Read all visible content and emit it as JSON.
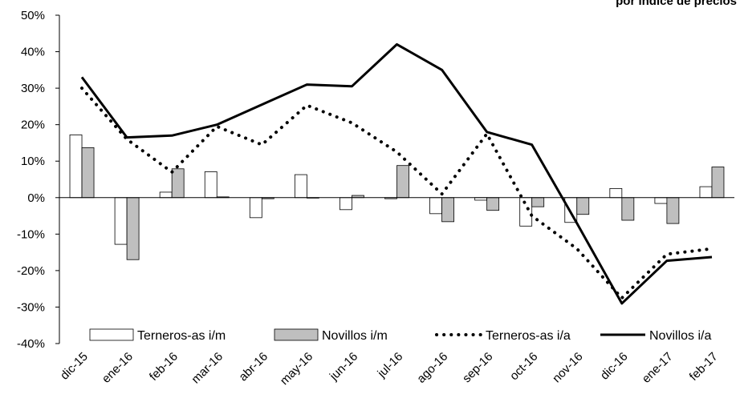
{
  "chart_data": {
    "type": "bar",
    "title": "por índice de precios",
    "xlabel": "",
    "ylabel": "",
    "ylim": [
      -0.4,
      0.5
    ],
    "yticks": [
      -0.4,
      -0.3,
      -0.2,
      -0.1,
      0,
      0.1,
      0.2,
      0.3,
      0.4,
      0.5
    ],
    "ytick_labels": [
      "-40%",
      "-30%",
      "-20%",
      "-10%",
      "0%",
      "10%",
      "20%",
      "30%",
      "40%",
      "50%"
    ],
    "categories": [
      "dic-15",
      "ene-16",
      "feb-16",
      "mar-16",
      "abr-16",
      "may-16",
      "jun-16",
      "jul-16",
      "ago-16",
      "sep-16",
      "oct-16",
      "nov-16",
      "dic-16",
      "ene-17",
      "feb-17"
    ],
    "grid": false,
    "legend_position": "bottom",
    "series": [
      {
        "name": "Terneros-as i/m",
        "kind": "bar",
        "color": "#ffffff",
        "values": [
          0.172,
          -0.128,
          0.015,
          0.071,
          -0.055,
          0.063,
          -0.033,
          -0.003,
          -0.044,
          -0.007,
          -0.078,
          -0.068,
          0.025,
          -0.016,
          0.03
        ]
      },
      {
        "name": "Novillos i/m",
        "kind": "bar",
        "color": "#bfbfbf",
        "values": [
          0.137,
          -0.17,
          0.079,
          0.002,
          -0.003,
          0.0,
          0.006,
          0.088,
          -0.066,
          -0.035,
          -0.025,
          -0.046,
          -0.062,
          -0.071,
          0.084
        ]
      },
      {
        "name": "Terneros-as i/a",
        "kind": "line",
        "style": "dotted",
        "color": "#000000",
        "values": [
          0.3,
          0.16,
          0.07,
          0.195,
          0.145,
          0.253,
          0.205,
          0.125,
          0.01,
          0.175,
          -0.05,
          -0.14,
          -0.275,
          -0.155,
          -0.14
        ]
      },
      {
        "name": "Novillos i/a",
        "kind": "line",
        "style": "solid",
        "color": "#000000",
        "values": [
          0.33,
          0.165,
          0.17,
          0.2,
          0.255,
          0.31,
          0.305,
          0.42,
          0.35,
          0.18,
          0.145,
          -0.07,
          -0.29,
          -0.173,
          -0.163
        ]
      }
    ]
  }
}
